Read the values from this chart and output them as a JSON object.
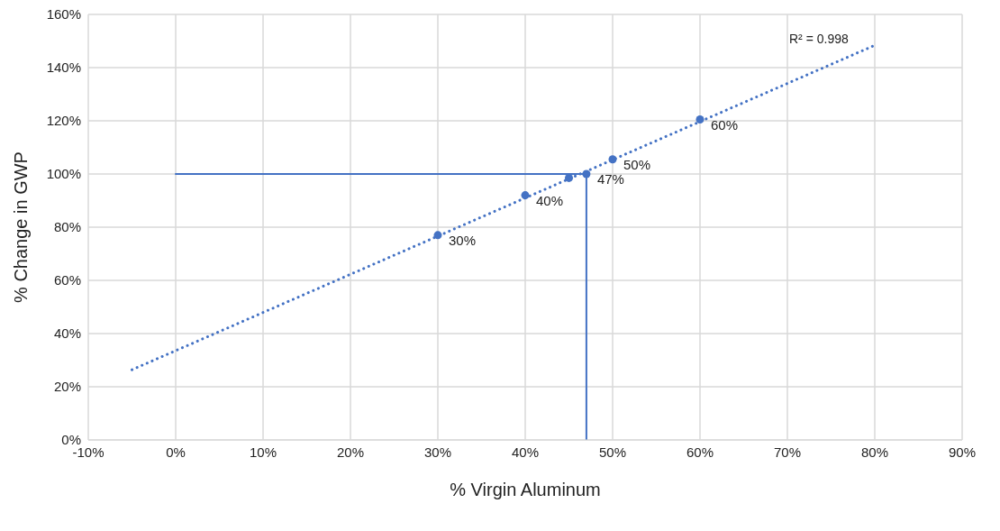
{
  "chart_data": {
    "type": "scatter",
    "xlabel": "% Virgin Aluminum",
    "ylabel": "% Change in GWP",
    "annotations": [
      "R² = 0.998",
      {
        "text": "30%",
        "x": 30,
        "y": 77
      },
      {
        "text": "40%",
        "x": 40,
        "y": 92
      },
      {
        "text": "47%",
        "x": 47,
        "y": 100
      },
      {
        "text": "50%",
        "x": 50,
        "y": 105.5
      },
      {
        "text": "60%",
        "x": 60,
        "y": 120.5
      }
    ],
    "xlim": [
      -10,
      90
    ],
    "xticks": [
      {
        "value": -10,
        "label": "-10%"
      },
      {
        "value": 0,
        "label": "0%"
      },
      {
        "value": 10,
        "label": "10%"
      },
      {
        "value": 20,
        "label": "20%"
      },
      {
        "value": 30,
        "label": "30%"
      },
      {
        "value": 40,
        "label": "40%"
      },
      {
        "value": 50,
        "label": "50%"
      },
      {
        "value": 60,
        "label": "60%"
      },
      {
        "value": 70,
        "label": "70%"
      },
      {
        "value": 80,
        "label": "80%"
      },
      {
        "value": 90,
        "label": "90%"
      }
    ],
    "ylim": [
      0,
      160
    ],
    "yticks": [
      {
        "value": 0,
        "label": "0%"
      },
      {
        "value": 20,
        "label": "20%"
      },
      {
        "value": 40,
        "label": "40%"
      },
      {
        "value": 60,
        "label": "60%"
      },
      {
        "value": 80,
        "label": "80%"
      },
      {
        "value": 100,
        "label": "100%"
      },
      {
        "value": 120,
        "label": "120%"
      },
      {
        "value": 140,
        "label": "140%"
      },
      {
        "value": 160,
        "label": "160%"
      }
    ],
    "grid": true,
    "series": [
      {
        "color": "#4472c4",
        "marker": "circle",
        "x": [
          30,
          40,
          45,
          47,
          50,
          60
        ],
        "values": [
          77,
          92,
          98.5,
          100,
          105.5,
          120.5
        ]
      },
      {
        "type": "line",
        "color": "#4472c4",
        "line_style": "dotted",
        "marker": "none",
        "x": [
          -5,
          80
        ],
        "values": [
          26.4,
          148.4
        ]
      },
      {
        "type": "line",
        "color": "#4472c4",
        "line_style": "solid",
        "marker": "none",
        "x": [
          0,
          47,
          47
        ],
        "values": [
          100,
          100,
          0
        ]
      }
    ]
  }
}
